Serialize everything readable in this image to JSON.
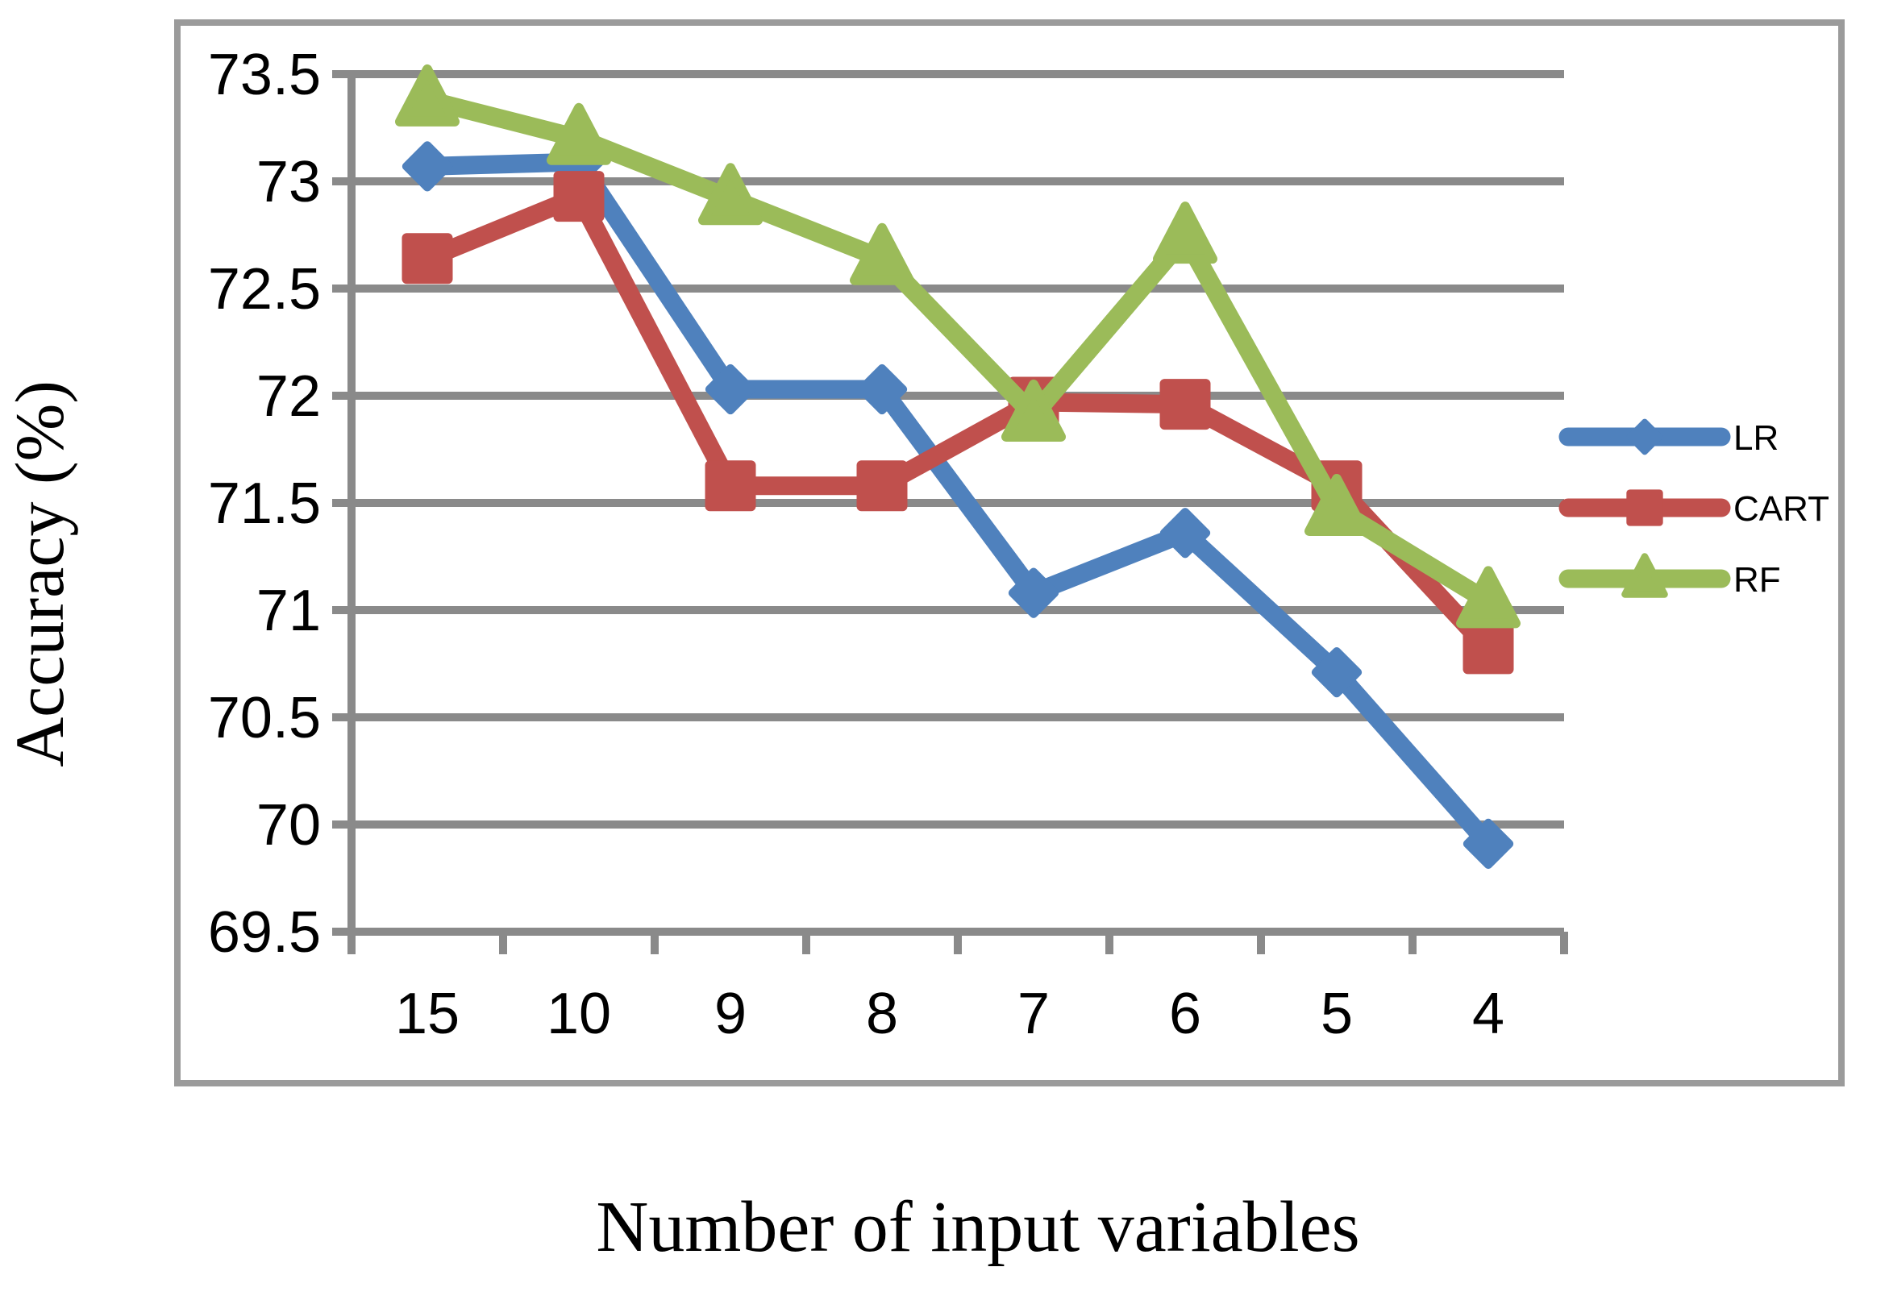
{
  "chart_data": {
    "type": "line",
    "title": "",
    "xlabel": "Number of input variables",
    "ylabel": "Accuracy (%)",
    "categories": [
      "15",
      "10",
      "9",
      "8",
      "7",
      "6",
      "5",
      "4"
    ],
    "y_tick_labels": [
      "73.5",
      "73",
      "72.5",
      "72",
      "71.5",
      "71",
      "70.5",
      "70",
      "69.5"
    ],
    "ylim": [
      69.5,
      73.5
    ],
    "grid": true,
    "legend_position": "right",
    "series": [
      {
        "name": "LR",
        "marker": "diamond",
        "color": "#4F81BD",
        "values": [
          73.07,
          73.09,
          72.03,
          72.03,
          71.08,
          71.36,
          70.71,
          69.91
        ]
      },
      {
        "name": "CART",
        "marker": "square",
        "color": "#C0504D",
        "values": [
          72.64,
          72.93,
          71.58,
          71.58,
          71.97,
          71.96,
          71.58,
          70.82
        ]
      },
      {
        "name": "RF",
        "marker": "triangle",
        "color": "#9BBB59",
        "values": [
          73.38,
          73.2,
          72.92,
          72.64,
          71.91,
          72.74,
          71.47,
          71.04
        ]
      }
    ]
  },
  "styles": {
    "grid_color": "#8A8A8A",
    "axis_color": "#8A8A8A",
    "border_color": "#9B9B9B",
    "text_color": "#000000",
    "background": "#FFFFFF"
  }
}
